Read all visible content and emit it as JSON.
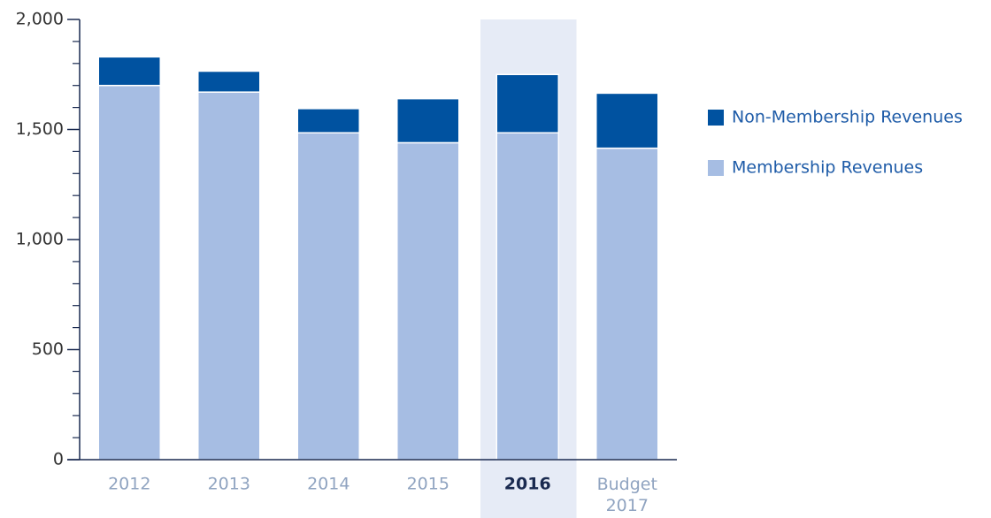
{
  "chart_data": {
    "type": "stacked_bar",
    "categories": [
      "2012",
      "2013",
      "2014",
      "2015",
      "2016",
      "Budget\n2017"
    ],
    "series": [
      {
        "name": "Membership Revenues",
        "color": "#a6bde3",
        "values": [
          1700,
          1670,
          1485,
          1440,
          1485,
          1415
        ]
      },
      {
        "name": "Non-Membership Revenues",
        "color": "#0052a0",
        "values": [
          130,
          95,
          110,
          200,
          265,
          250
        ]
      }
    ],
    "ylim": [
      0,
      2000
    ],
    "yticks": [
      0,
      500,
      {
        "value": 1000,
        "label": "1,000"
      },
      {
        "value": 1500,
        "label": "1,500"
      },
      {
        "value": 2000,
        "label": "2,000"
      }
    ],
    "minor_yticks": [
      100,
      200,
      300,
      400,
      600,
      700,
      800,
      900,
      1100,
      1200,
      1300,
      1400,
      1600,
      1700,
      1800,
      1900
    ],
    "highlight_index": 4,
    "legend": "right"
  }
}
